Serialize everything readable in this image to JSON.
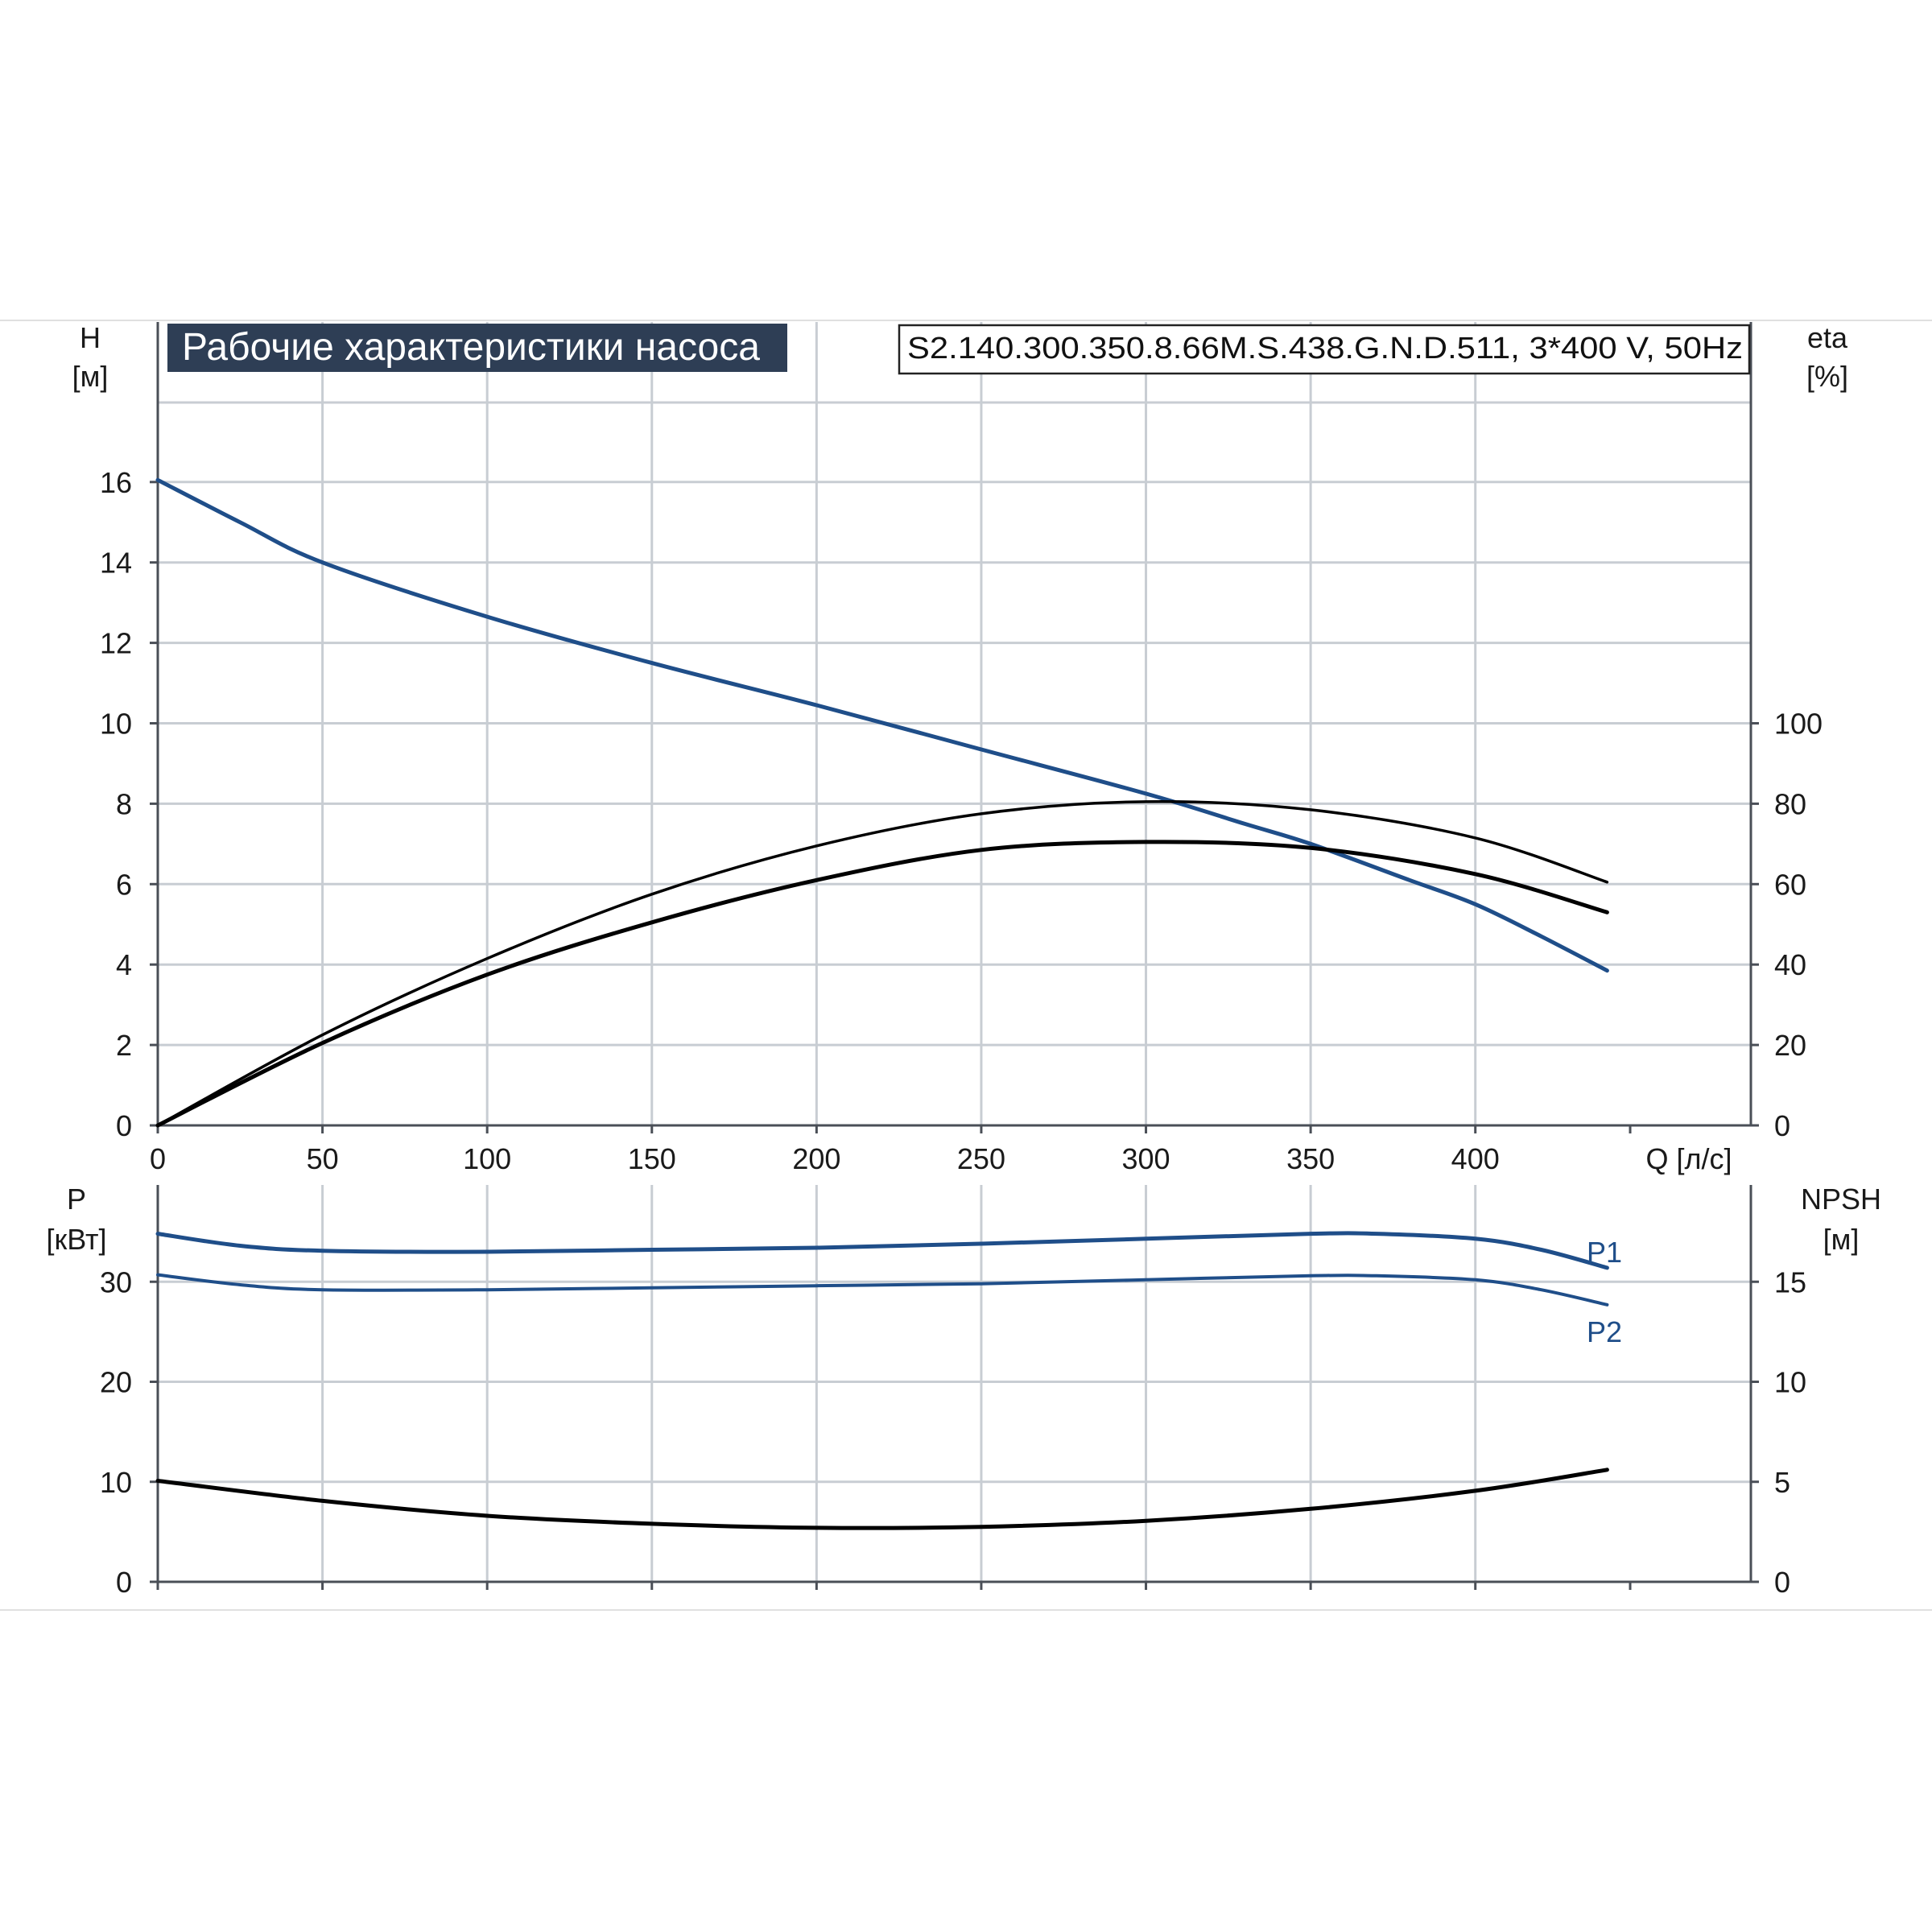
{
  "title": "Рабочие характеристики насоса",
  "model": "S2.140.300.350.8.66M.S.438.G.N.D.511, 3*400 V, 50Hz",
  "colors": {
    "blue_series": "#1f4e89",
    "black_series": "#000000",
    "title_bg": "#2e3e55",
    "grid": "#c8cdd3"
  },
  "chart_data": [
    {
      "type": "line",
      "panel": "top",
      "x_axis": {
        "label": "Q [л/с]",
        "range": [
          0,
          440
        ],
        "ticks": [
          0,
          50,
          100,
          150,
          200,
          250,
          300,
          350,
          400
        ]
      },
      "y_left": {
        "label_line1": "H",
        "label_line2": "[м]",
        "range": [
          0,
          18
        ],
        "ticks": [
          0,
          2,
          4,
          6,
          8,
          10,
          12,
          14,
          16
        ]
      },
      "y_right": {
        "label_line1": "eta",
        "label_line2": "[%]",
        "range": [
          0,
          180
        ],
        "ticks": [
          0,
          20,
          40,
          60,
          80,
          100
        ]
      },
      "grid": true,
      "series": [
        {
          "axis": "left",
          "color": "#1f4e89",
          "x": [
            0,
            25,
            50,
            100,
            150,
            200,
            250,
            300,
            330,
            350,
            380,
            400,
            420,
            440
          ],
          "y": [
            16.05,
            15.0,
            14.0,
            12.65,
            11.5,
            10.45,
            9.35,
            8.25,
            7.5,
            7.0,
            6.1,
            5.5,
            4.7,
            3.85
          ]
        },
        {
          "axis": "right",
          "color": "#000000",
          "x": [
            0,
            50,
            100,
            150,
            200,
            250,
            300,
            350,
            400,
            440
          ],
          "y": [
            0,
            22.5,
            41.5,
            57.5,
            69.5,
            77.5,
            80.5,
            78.5,
            71.5,
            60.5
          ]
        },
        {
          "axis": "right",
          "color": "#000000",
          "x": [
            0,
            50,
            100,
            150,
            200,
            250,
            300,
            350,
            400,
            440
          ],
          "y": [
            0,
            20.5,
            37.5,
            50.5,
            61.0,
            68.5,
            70.5,
            69.0,
            62.5,
            53.0
          ]
        }
      ]
    },
    {
      "type": "line",
      "panel": "bottom",
      "x_axis": {
        "range": [
          0,
          440
        ],
        "ticks": [
          0,
          50,
          100,
          150,
          200,
          250,
          300,
          350,
          400
        ]
      },
      "y_left": {
        "label_line1": "P",
        "label_line2": "[кВт]",
        "range": [
          0,
          40
        ],
        "ticks": [
          0,
          10,
          20,
          30
        ]
      },
      "y_right": {
        "label_line1": "NPSH",
        "label_line2": "[м]",
        "range": [
          0,
          20
        ],
        "ticks": [
          0,
          5,
          10,
          15
        ]
      },
      "grid": true,
      "series": [
        {
          "name": "P1",
          "axis": "left",
          "color": "#1f4e89",
          "x": [
            0,
            25,
            50,
            100,
            150,
            200,
            250,
            300,
            350,
            370,
            400,
            420,
            440
          ],
          "y": [
            34.8,
            33.6,
            33.1,
            33.0,
            33.2,
            33.4,
            33.8,
            34.3,
            34.8,
            34.8,
            34.3,
            33.2,
            31.4
          ]
        },
        {
          "name": "P2",
          "axis": "left",
          "color": "#1f4e89",
          "x": [
            0,
            25,
            50,
            100,
            150,
            200,
            250,
            300,
            350,
            370,
            400,
            420,
            440
          ],
          "y": [
            30.7,
            29.7,
            29.2,
            29.2,
            29.4,
            29.6,
            29.8,
            30.2,
            30.6,
            30.6,
            30.2,
            29.2,
            27.7
          ]
        },
        {
          "axis": "right",
          "color": "#000000",
          "x": [
            0,
            50,
            100,
            150,
            200,
            250,
            300,
            350,
            400,
            440
          ],
          "y": [
            5.05,
            4.05,
            3.3,
            2.9,
            2.7,
            2.75,
            3.05,
            3.65,
            4.55,
            5.6
          ]
        }
      ]
    }
  ]
}
